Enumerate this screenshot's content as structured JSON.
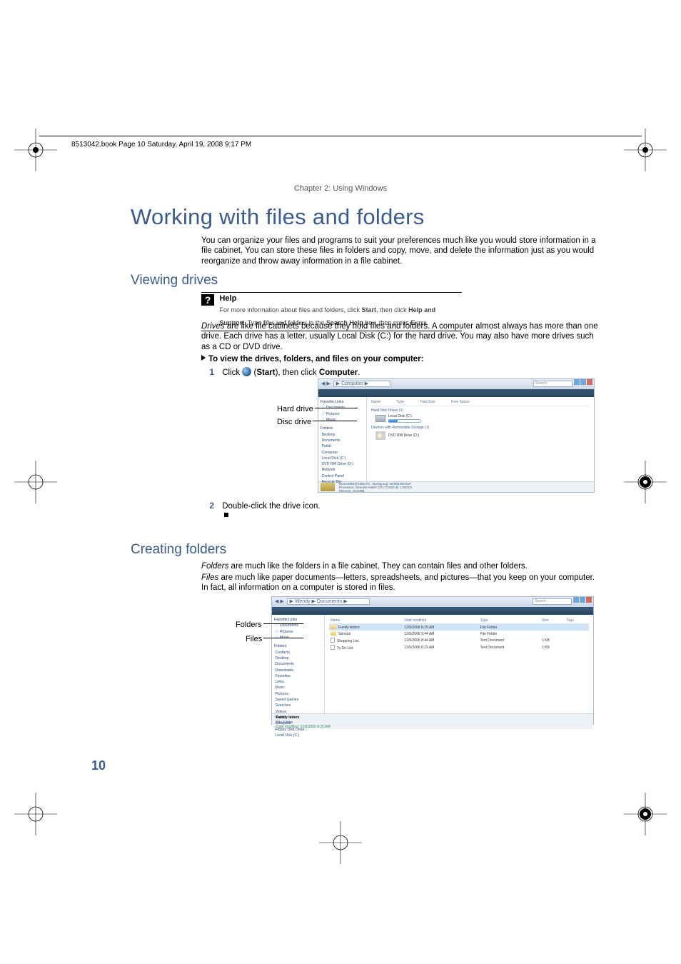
{
  "meta": {
    "header_line": "8513042.book  Page 10  Saturday, April 19, 2008  9:17 PM",
    "chapter": "Chapter 2: Using Windows",
    "page_number": "10"
  },
  "title": "Working with files and folders",
  "intro": "You can organize your files and programs to suit your preferences much like you would store information in a file cabinet. You can store these files in folders and copy, move, and delete the information just as you would reorganize and throw away information in a file cabinet.",
  "section_viewing": {
    "heading": "Viewing drives",
    "help": {
      "title": "Help",
      "text_pre": "For more information about files and folders, click ",
      "start": "Start",
      "text_mid": ", then click ",
      "hs": "Help and Support",
      "text_post": ". Type ",
      "query": "files and folders",
      "text_in": " in the ",
      "sh": "Search Help",
      "text_end1": " box, then press ",
      "enter": "Enter",
      "text_end2": "."
    },
    "drives_para_lead": "Drives",
    "drives_para_rest": " are like file cabinets because they hold files and folders. A computer almost always has more than one drive. Each drive has a letter, usually Local Disk (C:) for the hard drive. You may also have more drives such as a CD or DVD drive.",
    "steps_heading": "To view the drives, folders, and files on your computer:",
    "step1_pre": "Click ",
    "step1_start": "Start",
    "step1_mid": "), then click ",
    "step1_computer": "Computer",
    "step1_end": ".",
    "step2": "Double-click the drive icon.",
    "callout_hd": "Hard drive",
    "callout_dd": "Disc drive"
  },
  "screenshot1": {
    "breadcrumb": "▶ Computer ▶",
    "search": "Search",
    "columns": [
      "Name",
      "Type",
      "Total Size",
      "Free Space"
    ],
    "sidebar_fav": "Favorite Links",
    "sidebar_items1": [
      "Documents",
      "Pictures",
      "Music"
    ],
    "sidebar_folders": "Folders",
    "sidebar_items2": [
      "Desktop",
      "Documents",
      "Public",
      "Computer",
      "Local Disk (C:)",
      "DVD RW Drive (D:)",
      "Network",
      "Control Panel",
      "Recycle Bin"
    ],
    "sect_hdd": "Hard Disk Drives (1)",
    "local_disk": "Local Disk (C:)",
    "sect_removable": "Devices with Removable Storage (1)",
    "dvd_drive": "DVD RW Drive (D:)",
    "status_title": "DOCUMENT2350-PC",
    "status_wg": "Workgroup: WORKGROUP",
    "status_proc": "Processor: Genuine Intel® CPU        T2300  @ 1.66GHz",
    "status_mem": "Memory: 1014MB"
  },
  "section_creating": {
    "heading": "Creating folders",
    "p1_lead": "Folders",
    "p1_rest": " are much like the folders in a file cabinet. They can contain files and other folders.",
    "p2_lead": "Files",
    "p2_rest": " are much like paper documents—letters, spreadsheets, and pictures—that you keep on your computer. In fact, all information on a computer is stored in files.",
    "callout_folders": "Folders",
    "callout_files": "Files"
  },
  "screenshot2": {
    "breadcrumb": "▶ Wendy ▶ Documents ▶",
    "search": "Search",
    "columns": [
      "Name",
      "Date modified",
      "Type",
      "Size",
      "Tags"
    ],
    "rows": [
      {
        "name": "Family letters",
        "date": "12/6/2006 8:25 AM",
        "type": "File Folder",
        "size": ""
      },
      {
        "name": "Sprouts",
        "date": "12/6/2006 9:44 AM",
        "type": "File Folder",
        "size": ""
      },
      {
        "name": "Shopping List",
        "date": "12/6/2006 8:44 AM",
        "type": "Text Document",
        "size": "1 KB"
      },
      {
        "name": "To Do List",
        "date": "12/6/2006 8:23 AM",
        "type": "Text Document",
        "size": "1 KB"
      }
    ],
    "sidebar_fav": "Favorite Links",
    "sidebar_items1": [
      "Documents",
      "Pictures",
      "Music"
    ],
    "sidebar_folders": "Folders",
    "sidebar_items2": [
      "Contacts",
      "Desktop",
      "Documents",
      "Downloads",
      "Favorites",
      "Links",
      "Music",
      "Pictures",
      "Saved Games",
      "Searches",
      "Videos",
      "Public",
      "Computer",
      "Floppy Disk Drive...",
      "Local Disk (C:)"
    ],
    "status_name": "Family letters",
    "status_type": "File Folder",
    "status_date": "Date modified: 12/6/2006 8:25 AM"
  }
}
